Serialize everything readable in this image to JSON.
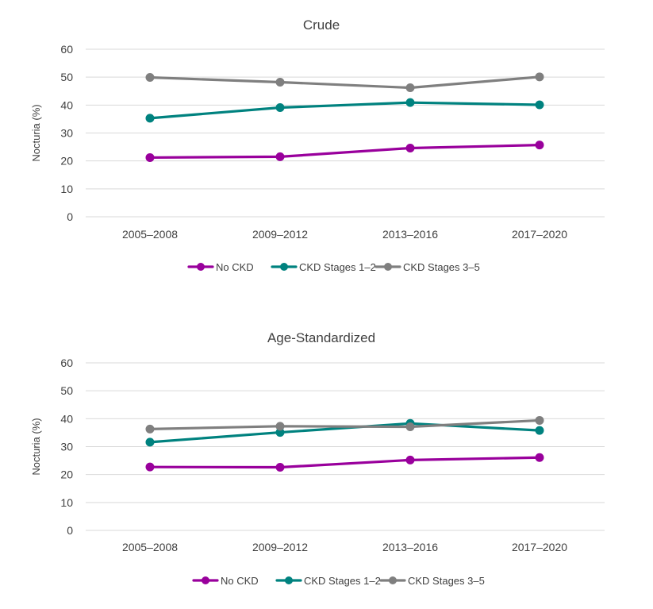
{
  "chart_data": [
    {
      "type": "line",
      "title": "Crude",
      "xlabel": "",
      "ylabel": "Nocturia (%)",
      "ylim": [
        0,
        60
      ],
      "yticks": [
        0,
        10,
        20,
        30,
        40,
        50,
        60
      ],
      "grid": true,
      "legend_position": "bottom",
      "categories": [
        "2005–2008",
        "2009–2012",
        "2013–2016",
        "2017–2020"
      ],
      "series": [
        {
          "name": "No CKD",
          "color": "#99009C",
          "values": [
            21.2,
            21.5,
            24.6,
            25.7
          ]
        },
        {
          "name": "CKD Stages 1–2",
          "color": "#00827F",
          "values": [
            35.3,
            39.1,
            40.9,
            40.1
          ]
        },
        {
          "name": "CKD Stages 3–5",
          "color": "#7F7F7F",
          "values": [
            49.9,
            48.2,
            46.2,
            50.1
          ]
        }
      ]
    },
    {
      "type": "line",
      "title": "Age-Standardized",
      "xlabel": "",
      "ylabel": "Nocturia (%)",
      "ylim": [
        0,
        60
      ],
      "yticks": [
        0,
        10,
        20,
        30,
        40,
        50,
        60
      ],
      "grid": true,
      "legend_position": "bottom",
      "categories": [
        "2005–2008",
        "2009–2012",
        "2013–2016",
        "2017–2020"
      ],
      "series": [
        {
          "name": "No CKD",
          "color": "#99009C",
          "values": [
            22.7,
            22.6,
            25.2,
            26.1
          ]
        },
        {
          "name": "CKD Stages 1–2",
          "color": "#00827F",
          "values": [
            31.6,
            35.1,
            38.3,
            35.8
          ]
        },
        {
          "name": "CKD Stages 3–5",
          "color": "#7F7F7F",
          "values": [
            36.3,
            37.3,
            37.1,
            39.4
          ]
        }
      ]
    }
  ]
}
